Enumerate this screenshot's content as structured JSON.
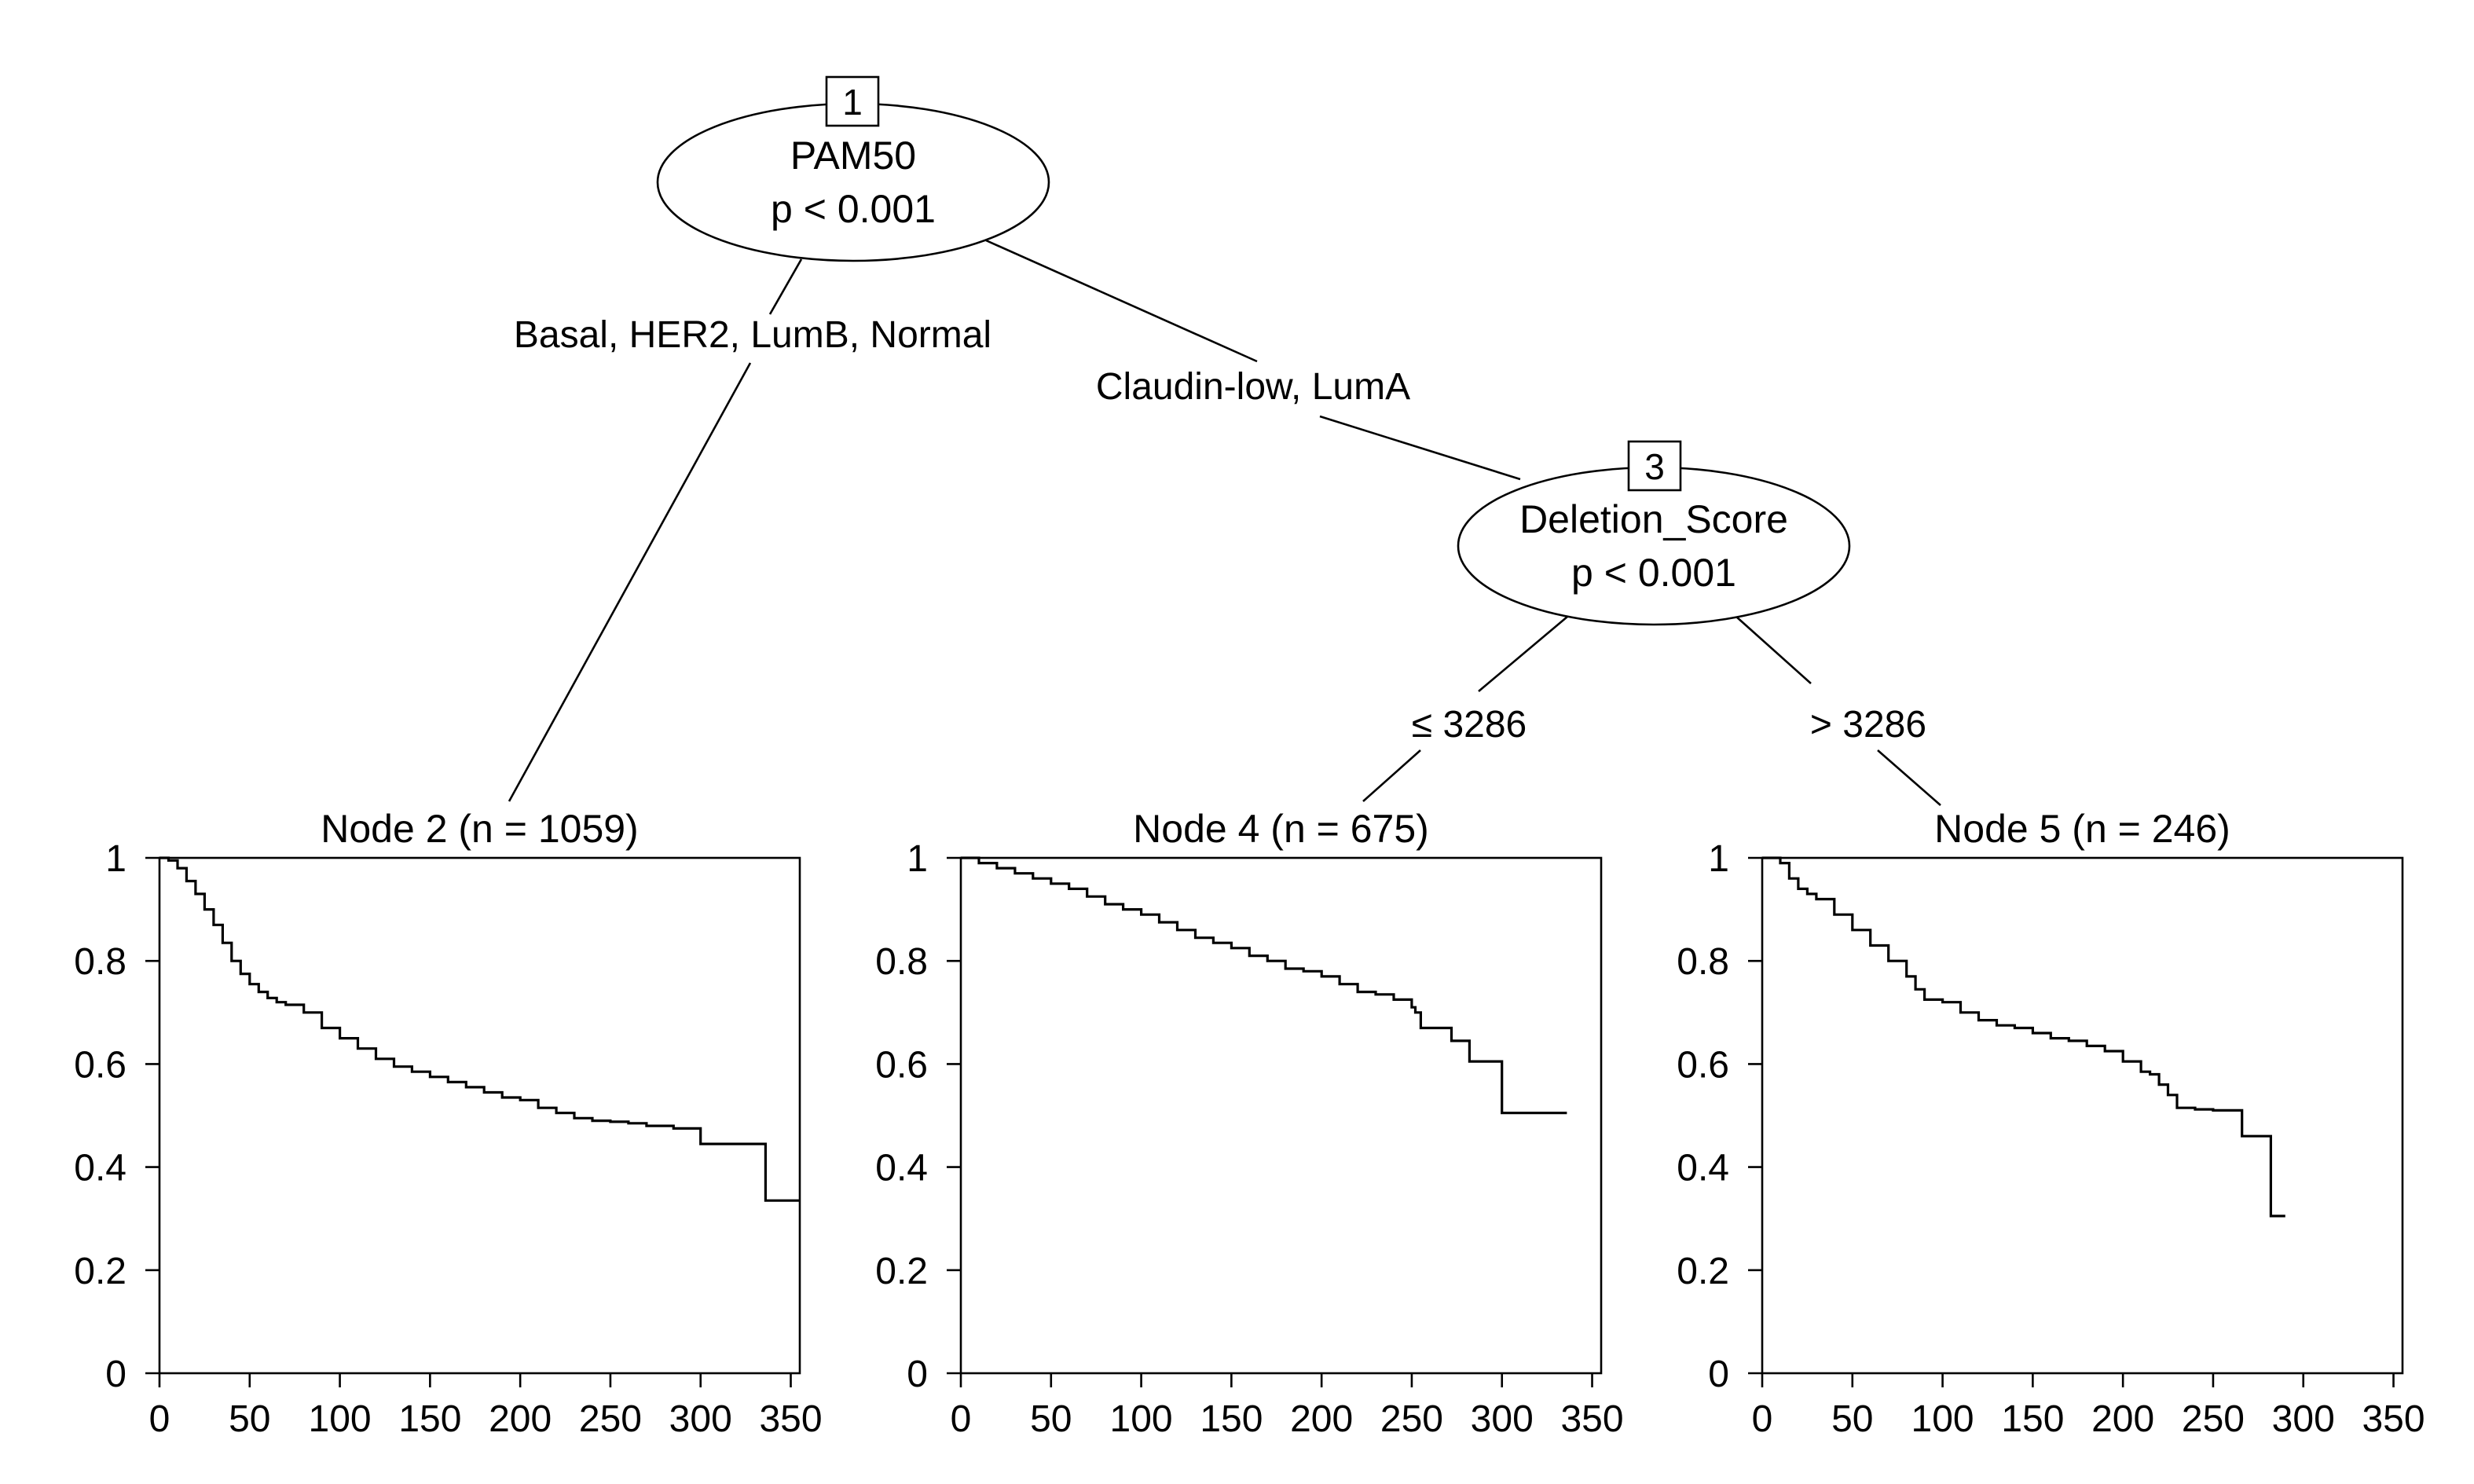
{
  "tree": {
    "nodes": [
      {
        "id": "1",
        "id_label": "1",
        "variable": "PAM50",
        "pvalue": "p < 0.001"
      },
      {
        "id": "3",
        "id_label": "3",
        "variable": "Deletion_Score",
        "pvalue": "p < 0.001"
      }
    ],
    "edges": [
      {
        "from": "1",
        "to": "2",
        "label": "Basal, HER2, LumB, Normal"
      },
      {
        "from": "1",
        "to": "3",
        "label": "Claudin-low, LumA"
      },
      {
        "from": "3",
        "to": "4",
        "label": "≤ 3286"
      },
      {
        "from": "3",
        "to": "5",
        "label": "> 3286"
      }
    ]
  },
  "chart_data": [
    {
      "type": "line",
      "title": "Node 2 (n = 1059)",
      "xlim": [
        0,
        355
      ],
      "ylim": [
        0,
        1
      ],
      "xticks": [
        "0",
        "50",
        "100",
        "150",
        "200",
        "250",
        "300",
        "350"
      ],
      "yticks": [
        "0",
        "0.2",
        "0.4",
        "0.6",
        "0.8",
        "1"
      ],
      "series": [
        {
          "x": [
            0,
            5,
            10,
            15,
            20,
            25,
            30,
            35,
            40,
            45,
            50,
            55,
            60,
            65,
            70,
            80,
            90,
            100,
            110,
            120,
            130,
            140,
            150,
            160,
            170,
            180,
            190,
            200,
            210,
            220,
            230,
            240,
            250,
            260,
            270,
            285,
            300,
            320,
            336,
            336,
            355
          ],
          "y": [
            1,
            0.995,
            0.98,
            0.955,
            0.93,
            0.9,
            0.87,
            0.835,
            0.8,
            0.775,
            0.755,
            0.74,
            0.728,
            0.72,
            0.715,
            0.7,
            0.67,
            0.65,
            0.63,
            0.61,
            0.595,
            0.585,
            0.575,
            0.565,
            0.555,
            0.545,
            0.535,
            0.53,
            0.515,
            0.505,
            0.495,
            0.49,
            0.488,
            0.485,
            0.48,
            0.475,
            0.445,
            0.445,
            0.445,
            0.335,
            0.335
          ]
        }
      ]
    },
    {
      "type": "line",
      "title": "Node 4 (n = 675)",
      "xlim": [
        0,
        355
      ],
      "ylim": [
        0,
        1
      ],
      "xticks": [
        "0",
        "50",
        "100",
        "150",
        "200",
        "250",
        "300",
        "350"
      ],
      "yticks": [
        "0",
        "0.2",
        "0.4",
        "0.6",
        "0.8",
        "1"
      ],
      "series": [
        {
          "x": [
            0,
            10,
            20,
            30,
            40,
            50,
            60,
            70,
            80,
            90,
            100,
            110,
            120,
            130,
            140,
            150,
            160,
            170,
            180,
            190,
            200,
            210,
            220,
            230,
            240,
            250,
            252,
            255,
            270,
            272,
            280,
            282,
            300,
            300,
            336
          ],
          "y": [
            1,
            0.99,
            0.98,
            0.97,
            0.96,
            0.95,
            0.94,
            0.925,
            0.91,
            0.9,
            0.89,
            0.875,
            0.86,
            0.845,
            0.835,
            0.825,
            0.81,
            0.8,
            0.785,
            0.78,
            0.77,
            0.755,
            0.74,
            0.735,
            0.725,
            0.71,
            0.7,
            0.67,
            0.67,
            0.645,
            0.645,
            0.605,
            0.605,
            0.505,
            0.505
          ]
        }
      ]
    },
    {
      "type": "line",
      "title": "Node 5 (n = 246)",
      "xlim": [
        0,
        355
      ],
      "ylim": [
        0,
        1
      ],
      "xticks": [
        "0",
        "50",
        "100",
        "150",
        "200",
        "250",
        "300",
        "350"
      ],
      "yticks": [
        "0",
        "0.2",
        "0.4",
        "0.6",
        "0.8",
        "1"
      ],
      "series": [
        {
          "x": [
            0,
            10,
            15,
            20,
            25,
            30,
            40,
            50,
            60,
            70,
            80,
            85,
            90,
            100,
            110,
            120,
            130,
            140,
            150,
            160,
            170,
            180,
            190,
            200,
            210,
            215,
            220,
            225,
            230,
            240,
            250,
            264,
            266,
            282,
            282,
            290
          ],
          "y": [
            1,
            0.99,
            0.96,
            0.94,
            0.93,
            0.92,
            0.89,
            0.86,
            0.83,
            0.8,
            0.77,
            0.745,
            0.725,
            0.72,
            0.7,
            0.685,
            0.675,
            0.67,
            0.66,
            0.65,
            0.645,
            0.635,
            0.625,
            0.605,
            0.585,
            0.58,
            0.56,
            0.54,
            0.515,
            0.512,
            0.51,
            0.51,
            0.46,
            0.46,
            0.305,
            0.305
          ]
        }
      ]
    }
  ]
}
